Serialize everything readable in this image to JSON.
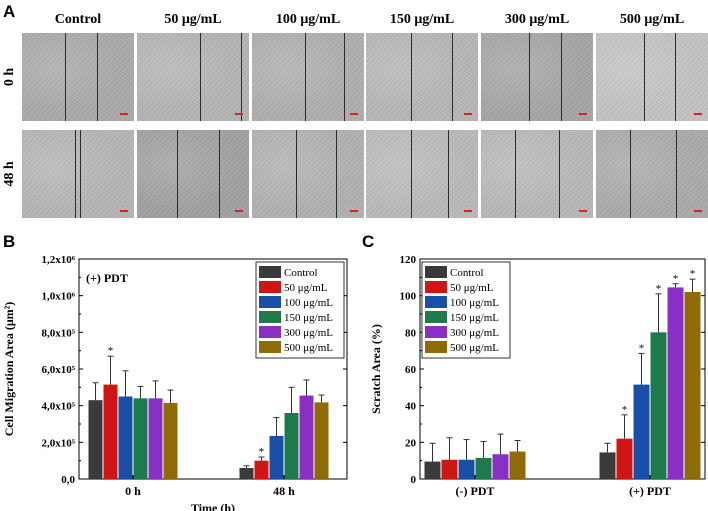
{
  "panels": {
    "a": "A",
    "b": "B",
    "c": "C"
  },
  "micrographs": {
    "columns": [
      "Control",
      "50 μg/mL",
      "100 μg/mL",
      "150 μg/mL",
      "300 μg/mL",
      "500 μg/mL"
    ],
    "rows": [
      "0 h",
      "48 h"
    ]
  },
  "colors": {
    "series": [
      "#3a3a3a",
      "#d01515",
      "#1a4fa8",
      "#1d7a4d",
      "#8a2fc4",
      "#8f6b08"
    ]
  },
  "chart_data": [
    {
      "type": "bar",
      "panel": "B",
      "annotation": "(+) PDT",
      "xlabel": "Time (h)",
      "ylabel": "Cell Migration Area (μm²)",
      "categories": [
        "0 h",
        "48 h"
      ],
      "ylim": [
        0,
        1200000
      ],
      "yticks": [
        "0,0",
        "2,0x10⁵",
        "4,0x10⁵",
        "6,0x10⁵",
        "8,0x10⁵",
        "1,0x10⁶",
        "1,2x10⁶"
      ],
      "series": [
        {
          "name": "Control",
          "values": [
            430000,
            60000
          ],
          "errors": [
            95000,
            12000
          ]
        },
        {
          "name": "50 μg/mL",
          "values": [
            515000,
            100000
          ],
          "errors": [
            155000,
            20000
          ]
        },
        {
          "name": "100 μg/mL",
          "values": [
            450000,
            235000
          ],
          "errors": [
            140000,
            100000
          ]
        },
        {
          "name": "150 μg/mL",
          "values": [
            440000,
            360000
          ],
          "errors": [
            65000,
            140000
          ]
        },
        {
          "name": "300 μg/mL",
          "values": [
            440000,
            455000
          ],
          "errors": [
            95000,
            85000
          ]
        },
        {
          "name": "500 μg/mL",
          "values": [
            415000,
            418000
          ],
          "errors": [
            70000,
            40000
          ]
        }
      ],
      "significance": [
        [
          "",
          ""
        ],
        [
          "*",
          "*"
        ],
        [
          "",
          ""
        ],
        [
          "",
          ""
        ],
        [
          "",
          ""
        ],
        [
          "",
          ""
        ]
      ],
      "legend": "top-right"
    },
    {
      "type": "bar",
      "panel": "C",
      "xlabel": "",
      "ylabel": "Scratch Area (%)",
      "categories": [
        "(-) PDT",
        "(+) PDT"
      ],
      "ylim": [
        0,
        120
      ],
      "yticks": [
        "0",
        "20",
        "40",
        "60",
        "80",
        "100",
        "120"
      ],
      "series": [
        {
          "name": "Control",
          "values": [
            9.5,
            14.5
          ],
          "errors": [
            10,
            5
          ]
        },
        {
          "name": "50 μg/mL",
          "values": [
            10.5,
            22
          ],
          "errors": [
            12,
            13
          ]
        },
        {
          "name": "100 μg/mL",
          "values": [
            10.5,
            51.5
          ],
          "errors": [
            11,
            17
          ]
        },
        {
          "name": "150 μg/mL",
          "values": [
            11.5,
            80
          ],
          "errors": [
            9,
            21
          ]
        },
        {
          "name": "300 μg/mL",
          "values": [
            13.5,
            104.5
          ],
          "errors": [
            11,
            2
          ]
        },
        {
          "name": "500 μg/mL",
          "values": [
            15,
            102
          ],
          "errors": [
            6,
            7
          ]
        }
      ],
      "significance": [
        [
          "",
          ""
        ],
        [
          "",
          "*"
        ],
        [
          "",
          "*"
        ],
        [
          "",
          "*"
        ],
        [
          "",
          "*"
        ],
        [
          "",
          "*"
        ]
      ],
      "legend": "top-left"
    }
  ]
}
